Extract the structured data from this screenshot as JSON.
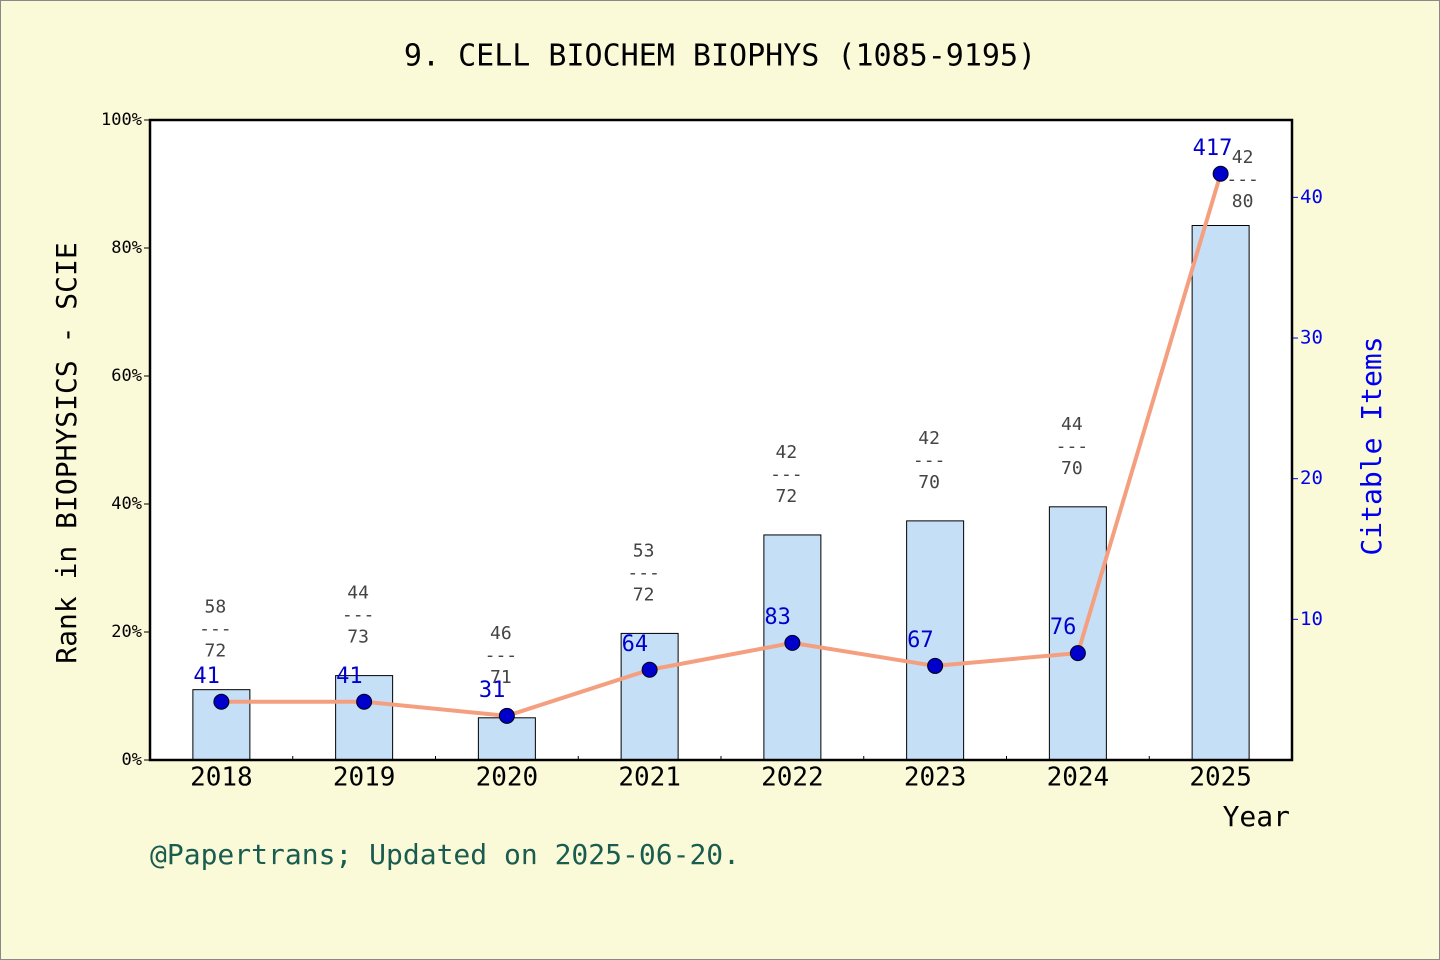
{
  "chart_data": {
    "type": "combo",
    "title": "9. CELL BIOCHEM BIOPHYS (1085-9195)",
    "ylabel": "Rank in BIOPHYSICS - SCIE",
    "y2label": "Citable Items",
    "xlabel": "Year",
    "footer": "@Papertrans; Updated on 2025-06-20.",
    "categories": [
      "2018",
      "2019",
      "2020",
      "2021",
      "2022",
      "2023",
      "2024",
      "2025"
    ],
    "series": [
      {
        "name": "Citable Items",
        "type": "bar",
        "axis": "y2",
        "color": "#c5dff6",
        "values": [
          5,
          6,
          3,
          9,
          16,
          17,
          18,
          38
        ]
      },
      {
        "name": "Rank",
        "type": "line",
        "color": "#f4a080",
        "values": [
          9.1,
          9.1,
          6.9,
          14.1,
          18.3,
          14.7,
          16.7,
          91.6
        ]
      }
    ],
    "rank_labels": [
      41,
      41,
      31,
      64,
      83,
      67,
      76,
      417
    ],
    "fraction_tops": [
      58,
      44,
      46,
      53,
      42,
      42,
      44,
      42
    ],
    "fraction_separator": "---",
    "fraction_bottoms": [
      72,
      73,
      71,
      72,
      72,
      70,
      70,
      80
    ],
    "ylim": [
      0,
      100
    ],
    "yticks": [
      {
        "value": 0,
        "label": "0%"
      },
      {
        "value": 20,
        "label": "20%"
      },
      {
        "value": 40,
        "label": "40%"
      },
      {
        "value": 60,
        "label": "60%"
      },
      {
        "value": 80,
        "label": "80%"
      },
      {
        "value": 100,
        "label": "100%"
      }
    ],
    "y2lim": [
      0,
      45.5
    ],
    "y2ticks": [
      10,
      20,
      30,
      40
    ]
  }
}
